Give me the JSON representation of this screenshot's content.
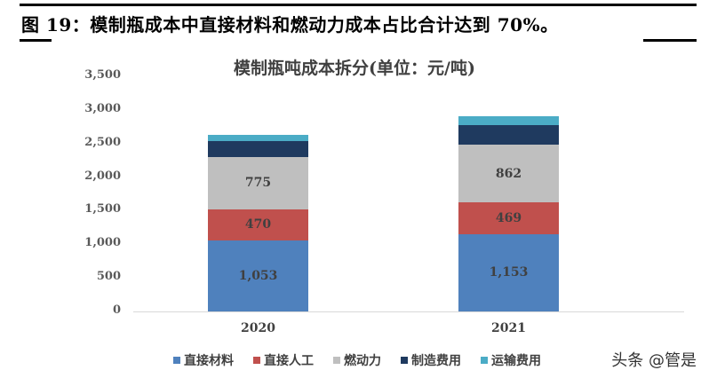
{
  "figure": {
    "caption": "图 19：模制瓶成本中直接材料和燃动力成本占比合计达到 70%。"
  },
  "watermark": "头条 @管是",
  "chart_data": {
    "type": "bar",
    "stacked": true,
    "title": "模制瓶吨成本拆分(单位：元/吨)",
    "xlabel": "",
    "ylabel": "",
    "ylim": [
      0,
      3500
    ],
    "yticks": [
      "3,500",
      "3,000",
      "2,500",
      "2,000",
      "1,500",
      "1,000",
      "500",
      "0"
    ],
    "categories": [
      "2020",
      "2021"
    ],
    "legend_position": "bottom",
    "grid": false,
    "series": [
      {
        "name": "直接材料",
        "color": "#4f81bd",
        "values": [
          1053,
          1153
        ],
        "labels": [
          "1,053",
          "1,153"
        ]
      },
      {
        "name": "直接人工",
        "color": "#c0504d",
        "values": [
          470,
          469
        ],
        "labels": [
          "470",
          "469"
        ]
      },
      {
        "name": "燃动力",
        "color": "#bfbfbf",
        "values": [
          775,
          862
        ],
        "labels": [
          "775",
          "862"
        ]
      },
      {
        "name": "制造费用",
        "color": "#1f3a5f",
        "values": [
          240,
          290
        ],
        "labels": [
          "",
          ""
        ]
      },
      {
        "name": "运输费用",
        "color": "#4bacc6",
        "values": [
          95,
          130
        ],
        "labels": [
          "",
          ""
        ]
      }
    ]
  }
}
